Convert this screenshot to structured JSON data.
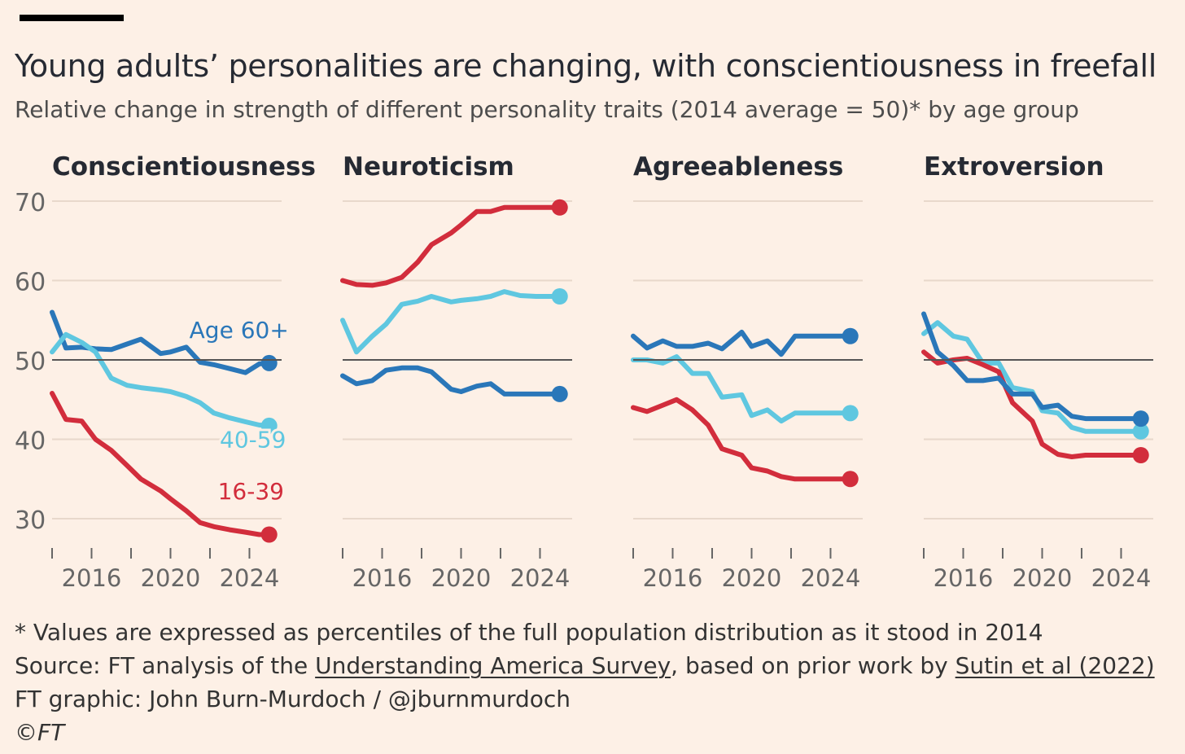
{
  "title": "Young adults’ personalities are changing, with conscientiousness in freefall",
  "subtitle": "Relative change in strength of different personality traits (2014 average = 50)* by age group",
  "colors": {
    "background": "#fdf0e6",
    "age_60_plus": "#2a77b9",
    "age_40_59": "#5fc7e0",
    "age_16_39": "#d22d3c",
    "baseline": "#555555",
    "grid": "#e8d8cb"
  },
  "footer": {
    "note": "* Values are expressed as percentiles of the full population distribution as it stood in 2014",
    "source_prefix": "Source: FT analysis of the ",
    "source_link1": "Understanding America Survey",
    "source_middle": ", based on prior work by ",
    "source_link2": "Sutin et al (2022)",
    "credit": "FT graphic: John Burn-Murdoch / @jburnmurdoch",
    "copyright": "©FT"
  },
  "chart_data": {
    "type": "line",
    "ylim": [
      25,
      72
    ],
    "y_ticks": [
      30,
      40,
      50,
      60,
      70
    ],
    "xlim": [
      2014,
      2025.3
    ],
    "x_ticks": [
      2014,
      2016,
      2018,
      2020,
      2022,
      2024
    ],
    "x_tick_labels": [
      2016,
      2020,
      2024
    ],
    "baseline": 50,
    "years": [
      2014,
      2014.7,
      2015.5,
      2016.2,
      2017,
      2017.8,
      2018.5,
      2019.5,
      2020,
      2020.8,
      2021.5,
      2022.2,
      2023,
      2023.8,
      2024.5,
      2025
    ],
    "panels": [
      {
        "title": "Conscientiousness",
        "series": [
          {
            "name": "Age 60+",
            "key": "age_60_plus",
            "values": [
              56,
              51.5,
              51.6,
              51.4,
              51.3,
              52,
              52.6,
              50.8,
              51,
              51.6,
              49.7,
              49.4,
              48.9,
              48.4,
              49.5,
              49.6
            ],
            "label_value": 53.8,
            "label_x": 2021
          },
          {
            "name": "40-59",
            "key": "age_40_59",
            "values": [
              51,
              53.2,
              52.2,
              51,
              47.7,
              46.8,
              46.5,
              46.2,
              46,
              45.4,
              44.6,
              43.3,
              42.7,
              42.2,
              41.8,
              41.7
            ],
            "label_value": 40,
            "label_x": 2021.7
          },
          {
            "name": "16-39",
            "key": "age_16_39",
            "values": [
              45.8,
              42.5,
              42.3,
              40,
              38.6,
              36.7,
              35,
              33.5,
              32.5,
              31,
              29.5,
              29,
              28.6,
              28.3,
              28,
              28
            ],
            "label_value": 33.5,
            "label_x": 2021.6
          }
        ]
      },
      {
        "title": "Neuroticism",
        "series": [
          {
            "name": "40-59",
            "key": "age_40_59",
            "values": [
              55,
              51,
              53,
              54.5,
              57,
              57.4,
              58,
              57.3,
              57.5,
              57.7,
              58,
              58.6,
              58.1,
              58,
              58,
              58
            ]
          },
          {
            "name": "16-39",
            "key": "age_16_39",
            "values": [
              60,
              59.5,
              59.4,
              59.7,
              60.4,
              62.3,
              64.5,
              66,
              67,
              68.7,
              68.7,
              69.2,
              69.2,
              69.2,
              69.2,
              69.2
            ]
          },
          {
            "name": "Age 60+",
            "key": "age_60_plus",
            "values": [
              48,
              47,
              47.4,
              48.7,
              49,
              49,
              48.5,
              46.3,
              46,
              46.7,
              47,
              45.7,
              45.7,
              45.7,
              45.7,
              45.7
            ]
          }
        ]
      },
      {
        "title": "Agreeableness",
        "series": [
          {
            "name": "Age 60+",
            "key": "age_60_plus",
            "values": [
              53,
              51.5,
              52.4,
              51.7,
              51.7,
              52.1,
              51.4,
              53.5,
              51.7,
              52.4,
              50.7,
              53,
              53,
              53,
              53,
              53
            ]
          },
          {
            "name": "40-59",
            "key": "age_40_59",
            "values": [
              50,
              50,
              49.6,
              50.4,
              48.3,
              48.3,
              45.3,
              45.6,
              43,
              43.7,
              42.3,
              43.3,
              43.3,
              43.3,
              43.3,
              43.3
            ]
          },
          {
            "name": "16-39",
            "key": "age_16_39",
            "values": [
              44,
              43.5,
              44.3,
              45,
              43.7,
              41.8,
              38.8,
              38,
              36.4,
              36,
              35.3,
              35,
              35,
              35,
              35,
              35
            ]
          }
        ]
      },
      {
        "title": "Extroversion",
        "series": [
          {
            "name": "40-59",
            "key": "age_40_59",
            "values": [
              53.3,
              54.7,
              53,
              52.6,
              49.6,
              49.6,
              46.5,
              46,
              43.6,
              43.3,
              41.5,
              41,
              41,
              41,
              41,
              41
            ]
          },
          {
            "name": "16-39",
            "key": "age_16_39",
            "values": [
              51,
              49.6,
              50,
              50.2,
              49.4,
              48.5,
              44.6,
              42.3,
              39.4,
              38.1,
              37.8,
              38,
              38,
              38,
              38,
              38
            ]
          },
          {
            "name": "Age 60+",
            "key": "age_60_plus",
            "values": [
              55.8,
              51,
              49.3,
              47.4,
              47.4,
              47.7,
              45.7,
              45.7,
              44,
              44.3,
              42.9,
              42.6,
              42.6,
              42.6,
              42.6,
              42.6
            ]
          }
        ]
      }
    ]
  }
}
